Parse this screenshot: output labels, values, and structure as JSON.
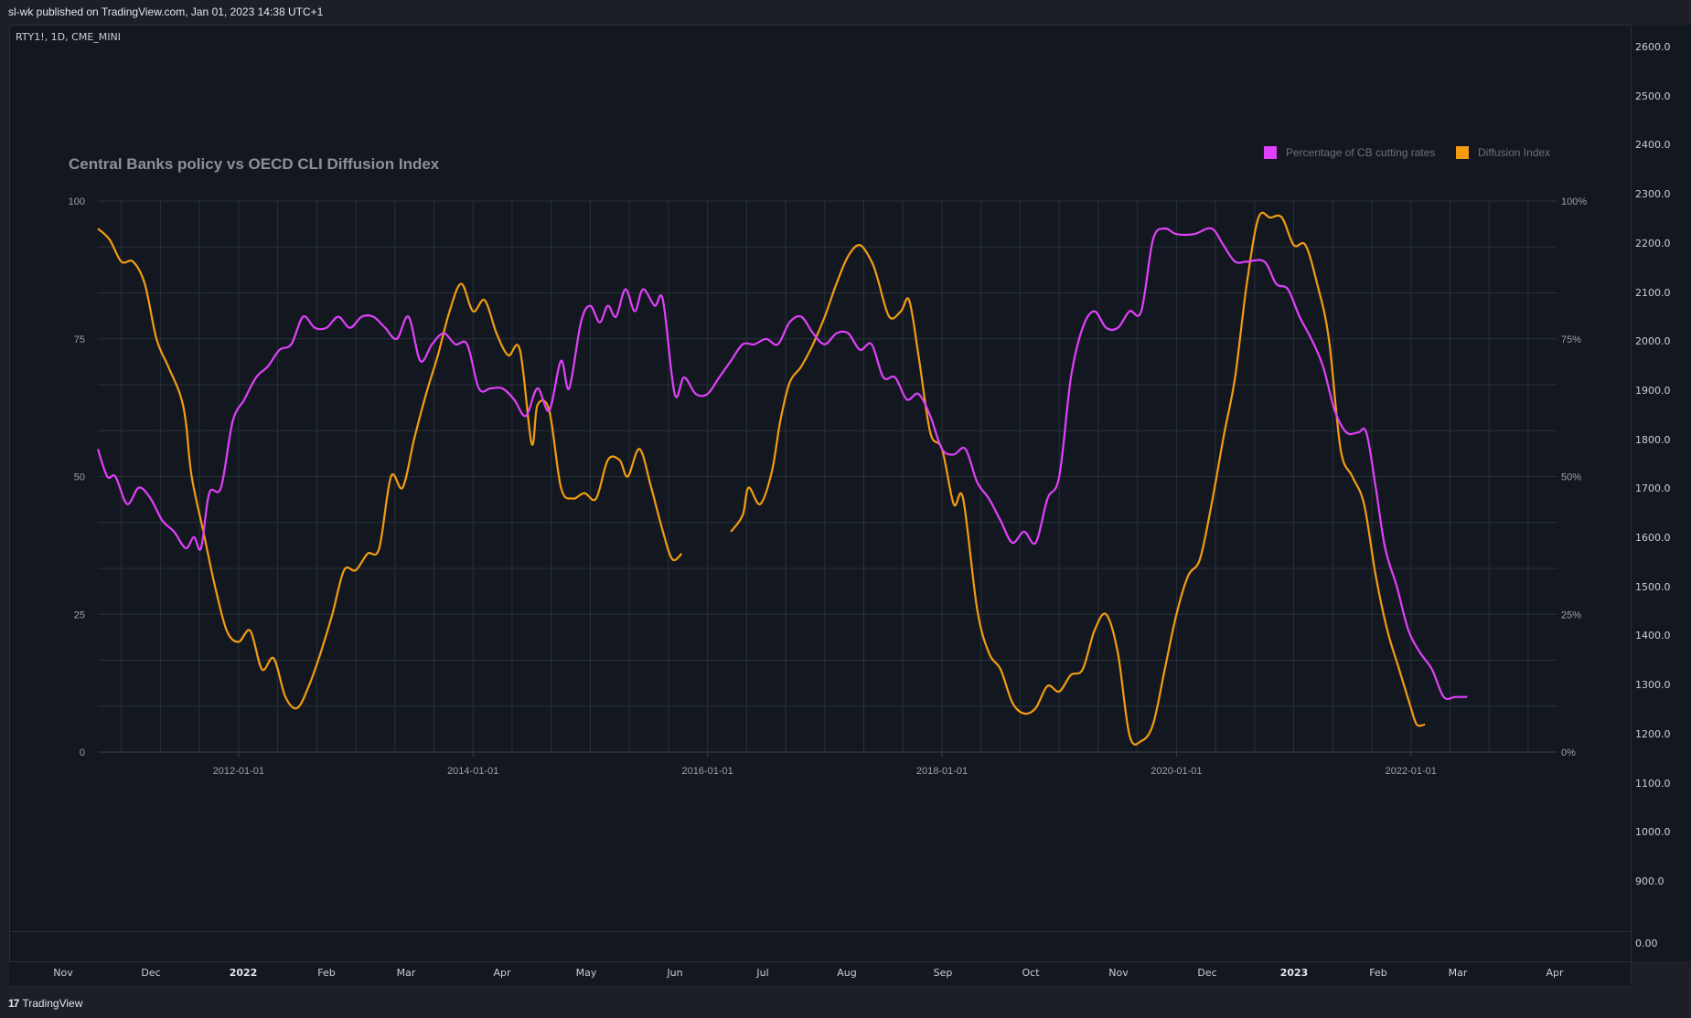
{
  "header": {
    "published": "sl-wk published on TradingView.com, Jan 01, 2023 14:38 UTC+1",
    "symbol": "RTY1!, 1D, CME_MINI"
  },
  "price_axis": [
    "2600.0",
    "2500.0",
    "2400.0",
    "2300.0",
    "2200.0",
    "2100.0",
    "2000.0",
    "1900.0",
    "1800.0",
    "1700.0",
    "1600.0",
    "1500.0",
    "1400.0",
    "1300.0",
    "1200.0",
    "1100.0",
    "1000.0",
    "900.0"
  ],
  "indicator_axis": "0.00",
  "time_axis": [
    {
      "label": "Nov",
      "bold": false
    },
    {
      "label": "Dec",
      "bold": false
    },
    {
      "label": "2022",
      "bold": true
    },
    {
      "label": "Feb",
      "bold": false
    },
    {
      "label": "Mar",
      "bold": false
    },
    {
      "label": "Apr",
      "bold": false
    },
    {
      "label": "May",
      "bold": false
    },
    {
      "label": "Jun",
      "bold": false
    },
    {
      "label": "Jul",
      "bold": false
    },
    {
      "label": "Aug",
      "bold": false
    },
    {
      "label": "Sep",
      "bold": false
    },
    {
      "label": "Oct",
      "bold": false
    },
    {
      "label": "Nov",
      "bold": false
    },
    {
      "label": "Dec",
      "bold": false
    },
    {
      "label": "2023",
      "bold": true
    },
    {
      "label": "Feb",
      "bold": false
    },
    {
      "label": "Mar",
      "bold": false
    },
    {
      "label": "Apr",
      "bold": false
    }
  ],
  "footer": {
    "brand": "TradingView",
    "logo_text": "17"
  },
  "colors": {
    "cb": "#e040fb",
    "diffusion": "#f39c12",
    "grid": "#283038",
    "text": "#9aa0a8"
  },
  "chart_data": {
    "type": "line",
    "title": "Central Banks policy vs OECD CLI Diffusion Index",
    "legend": [
      "Percentage of CB cutting rates",
      "Diffusion Index"
    ],
    "x_range": [
      2010.8,
      2023.25
    ],
    "x_ticks": [
      "2012-01-01",
      "2014-01-01",
      "2016-01-01",
      "2018-01-01",
      "2020-01-01",
      "2022-01-01"
    ],
    "left_axis": {
      "ylim": [
        0,
        100
      ],
      "ticks": [
        "0",
        "25",
        "50",
        "75",
        "100"
      ]
    },
    "right_axis": {
      "ylim": [
        0,
        100
      ],
      "ticks": [
        "0%",
        "25%",
        "50%",
        "75%",
        "100%"
      ]
    },
    "series": [
      {
        "name": "Percentage of CB cutting rates",
        "axis": "left",
        "points": [
          [
            2010.8,
            55
          ],
          [
            2010.88,
            50
          ],
          [
            2010.95,
            50
          ],
          [
            2011.05,
            45
          ],
          [
            2011.15,
            48
          ],
          [
            2011.25,
            46
          ],
          [
            2011.35,
            42
          ],
          [
            2011.45,
            40
          ],
          [
            2011.55,
            37
          ],
          [
            2011.62,
            39
          ],
          [
            2011.68,
            37
          ],
          [
            2011.75,
            47
          ],
          [
            2011.85,
            48
          ],
          [
            2011.95,
            60
          ],
          [
            2012.05,
            64
          ],
          [
            2012.15,
            68
          ],
          [
            2012.25,
            70
          ],
          [
            2012.35,
            73
          ],
          [
            2012.45,
            74
          ],
          [
            2012.55,
            79
          ],
          [
            2012.65,
            77
          ],
          [
            2012.75,
            77
          ],
          [
            2012.85,
            79
          ],
          [
            2012.95,
            77
          ],
          [
            2013.05,
            79
          ],
          [
            2013.15,
            79
          ],
          [
            2013.25,
            77
          ],
          [
            2013.35,
            75
          ],
          [
            2013.45,
            79
          ],
          [
            2013.55,
            71
          ],
          [
            2013.65,
            74
          ],
          [
            2013.75,
            76
          ],
          [
            2013.85,
            74
          ],
          [
            2013.95,
            74
          ],
          [
            2014.05,
            66
          ],
          [
            2014.15,
            66
          ],
          [
            2014.25,
            66
          ],
          [
            2014.35,
            64
          ],
          [
            2014.45,
            61
          ],
          [
            2014.55,
            66
          ],
          [
            2014.65,
            62
          ],
          [
            2014.75,
            71
          ],
          [
            2014.82,
            66
          ],
          [
            2014.92,
            78
          ],
          [
            2015.0,
            81
          ],
          [
            2015.08,
            78
          ],
          [
            2015.15,
            81
          ],
          [
            2015.22,
            79
          ],
          [
            2015.3,
            84
          ],
          [
            2015.38,
            80
          ],
          [
            2015.45,
            84
          ],
          [
            2015.55,
            81
          ],
          [
            2015.62,
            82
          ],
          [
            2015.72,
            65
          ],
          [
            2015.8,
            68
          ],
          [
            2015.9,
            65
          ],
          [
            2016.0,
            65
          ],
          [
            2016.1,
            68
          ],
          [
            2016.2,
            71
          ],
          [
            2016.3,
            74
          ],
          [
            2016.4,
            74
          ],
          [
            2016.5,
            75
          ],
          [
            2016.6,
            74
          ],
          [
            2016.7,
            78
          ],
          [
            2016.8,
            79
          ],
          [
            2016.9,
            76
          ],
          [
            2017.0,
            74
          ],
          [
            2017.1,
            76
          ],
          [
            2017.2,
            76
          ],
          [
            2017.3,
            73
          ],
          [
            2017.4,
            74
          ],
          [
            2017.5,
            68
          ],
          [
            2017.6,
            68
          ],
          [
            2017.7,
            64
          ],
          [
            2017.8,
            65
          ],
          [
            2017.9,
            61
          ],
          [
            2018.0,
            55
          ],
          [
            2018.1,
            54
          ],
          [
            2018.2,
            55
          ],
          [
            2018.3,
            49
          ],
          [
            2018.4,
            46
          ],
          [
            2018.5,
            42
          ],
          [
            2018.6,
            38
          ],
          [
            2018.7,
            40
          ],
          [
            2018.8,
            38
          ],
          [
            2018.9,
            46
          ],
          [
            2019.0,
            50
          ],
          [
            2019.1,
            68
          ],
          [
            2019.2,
            77
          ],
          [
            2019.3,
            80
          ],
          [
            2019.4,
            77
          ],
          [
            2019.5,
            77
          ],
          [
            2019.6,
            80
          ],
          [
            2019.7,
            80
          ],
          [
            2019.8,
            93
          ],
          [
            2019.9,
            95
          ],
          [
            2020.0,
            94
          ],
          [
            2020.15,
            94
          ],
          [
            2020.3,
            95
          ],
          [
            2020.4,
            92
          ],
          [
            2020.5,
            89
          ],
          [
            2020.6,
            89
          ],
          [
            2020.75,
            89
          ],
          [
            2020.85,
            85
          ],
          [
            2020.95,
            84
          ],
          [
            2021.05,
            79
          ],
          [
            2021.15,
            75
          ],
          [
            2021.25,
            70
          ],
          [
            2021.35,
            62
          ],
          [
            2021.45,
            58
          ],
          [
            2021.55,
            58
          ],
          [
            2021.62,
            58
          ],
          [
            2021.7,
            48
          ],
          [
            2021.78,
            37
          ],
          [
            2021.88,
            30
          ],
          [
            2021.98,
            22
          ],
          [
            2022.08,
            18
          ],
          [
            2022.18,
            15
          ],
          [
            2022.28,
            10
          ],
          [
            2022.38,
            10
          ],
          [
            2022.48,
            10
          ]
        ]
      },
      {
        "name": "Diffusion Index",
        "axis": "right",
        "points": [
          [
            2010.8,
            95
          ],
          [
            2010.9,
            93
          ],
          [
            2011.0,
            89
          ],
          [
            2011.1,
            89
          ],
          [
            2011.2,
            85
          ],
          [
            2011.3,
            75
          ],
          [
            2011.4,
            70
          ],
          [
            2011.5,
            65
          ],
          [
            2011.55,
            60
          ],
          [
            2011.6,
            50
          ],
          [
            2011.7,
            40
          ],
          [
            2011.8,
            30
          ],
          [
            2011.9,
            22
          ],
          [
            2012.0,
            20
          ],
          [
            2012.1,
            22
          ],
          [
            2012.2,
            15
          ],
          [
            2012.3,
            17
          ],
          [
            2012.4,
            10
          ],
          [
            2012.5,
            8
          ],
          [
            2012.6,
            12
          ],
          [
            2012.7,
            18
          ],
          [
            2012.8,
            25
          ],
          [
            2012.9,
            33
          ],
          [
            2013.0,
            33
          ],
          [
            2013.1,
            36
          ],
          [
            2013.2,
            37
          ],
          [
            2013.3,
            50
          ],
          [
            2013.4,
            48
          ],
          [
            2013.5,
            57
          ],
          [
            2013.6,
            65
          ],
          [
            2013.7,
            72
          ],
          [
            2013.8,
            80
          ],
          [
            2013.9,
            85
          ],
          [
            2014.0,
            80
          ],
          [
            2014.1,
            82
          ],
          [
            2014.2,
            76
          ],
          [
            2014.3,
            72
          ],
          [
            2014.4,
            73
          ],
          [
            2014.5,
            56
          ],
          [
            2014.55,
            63
          ],
          [
            2014.65,
            62
          ],
          [
            2014.75,
            48
          ],
          [
            2014.85,
            46
          ],
          [
            2014.95,
            47
          ],
          [
            2015.05,
            46
          ],
          [
            2015.15,
            53
          ],
          [
            2015.25,
            53
          ],
          [
            2015.32,
            50
          ],
          [
            2015.42,
            55
          ],
          [
            2015.52,
            48
          ],
          [
            2015.62,
            40
          ],
          [
            2015.7,
            35
          ],
          [
            2015.78,
            36
          ]
        ],
        "points2": [
          [
            2016.2,
            40
          ],
          [
            2016.3,
            43
          ],
          [
            2016.35,
            48
          ],
          [
            2016.45,
            45
          ],
          [
            2016.55,
            51
          ],
          [
            2016.62,
            60
          ],
          [
            2016.7,
            67
          ],
          [
            2016.8,
            70
          ],
          [
            2016.9,
            74
          ],
          [
            2017.0,
            79
          ],
          [
            2017.1,
            85
          ],
          [
            2017.2,
            90
          ],
          [
            2017.3,
            92
          ],
          [
            2017.4,
            89
          ],
          [
            2017.45,
            86
          ],
          [
            2017.55,
            79
          ],
          [
            2017.65,
            80
          ],
          [
            2017.72,
            82
          ],
          [
            2017.8,
            72
          ],
          [
            2017.9,
            58
          ],
          [
            2018.0,
            55
          ],
          [
            2018.1,
            45
          ],
          [
            2018.18,
            46
          ],
          [
            2018.3,
            26
          ],
          [
            2018.4,
            18
          ],
          [
            2018.5,
            15
          ],
          [
            2018.6,
            9
          ],
          [
            2018.7,
            7
          ],
          [
            2018.8,
            8
          ],
          [
            2018.9,
            12
          ],
          [
            2019.0,
            11
          ],
          [
            2019.1,
            14
          ],
          [
            2019.2,
            15
          ],
          [
            2019.3,
            22
          ],
          [
            2019.4,
            25
          ],
          [
            2019.5,
            18
          ],
          [
            2019.6,
            3
          ],
          [
            2019.7,
            2
          ],
          [
            2019.8,
            5
          ],
          [
            2019.9,
            15
          ],
          [
            2020.0,
            25
          ],
          [
            2020.1,
            32
          ],
          [
            2020.2,
            35
          ],
          [
            2020.3,
            45
          ],
          [
            2020.4,
            57
          ],
          [
            2020.5,
            68
          ],
          [
            2020.6,
            85
          ],
          [
            2020.7,
            97
          ],
          [
            2020.8,
            97
          ],
          [
            2020.9,
            97
          ],
          [
            2021.0,
            92
          ],
          [
            2021.1,
            92
          ],
          [
            2021.2,
            85
          ],
          [
            2021.3,
            75
          ],
          [
            2021.4,
            55
          ],
          [
            2021.5,
            50
          ],
          [
            2021.6,
            45
          ],
          [
            2021.7,
            32
          ],
          [
            2021.8,
            22
          ],
          [
            2021.9,
            15
          ],
          [
            2022.0,
            8
          ],
          [
            2022.05,
            5
          ],
          [
            2022.12,
            5
          ]
        ]
      }
    ]
  }
}
